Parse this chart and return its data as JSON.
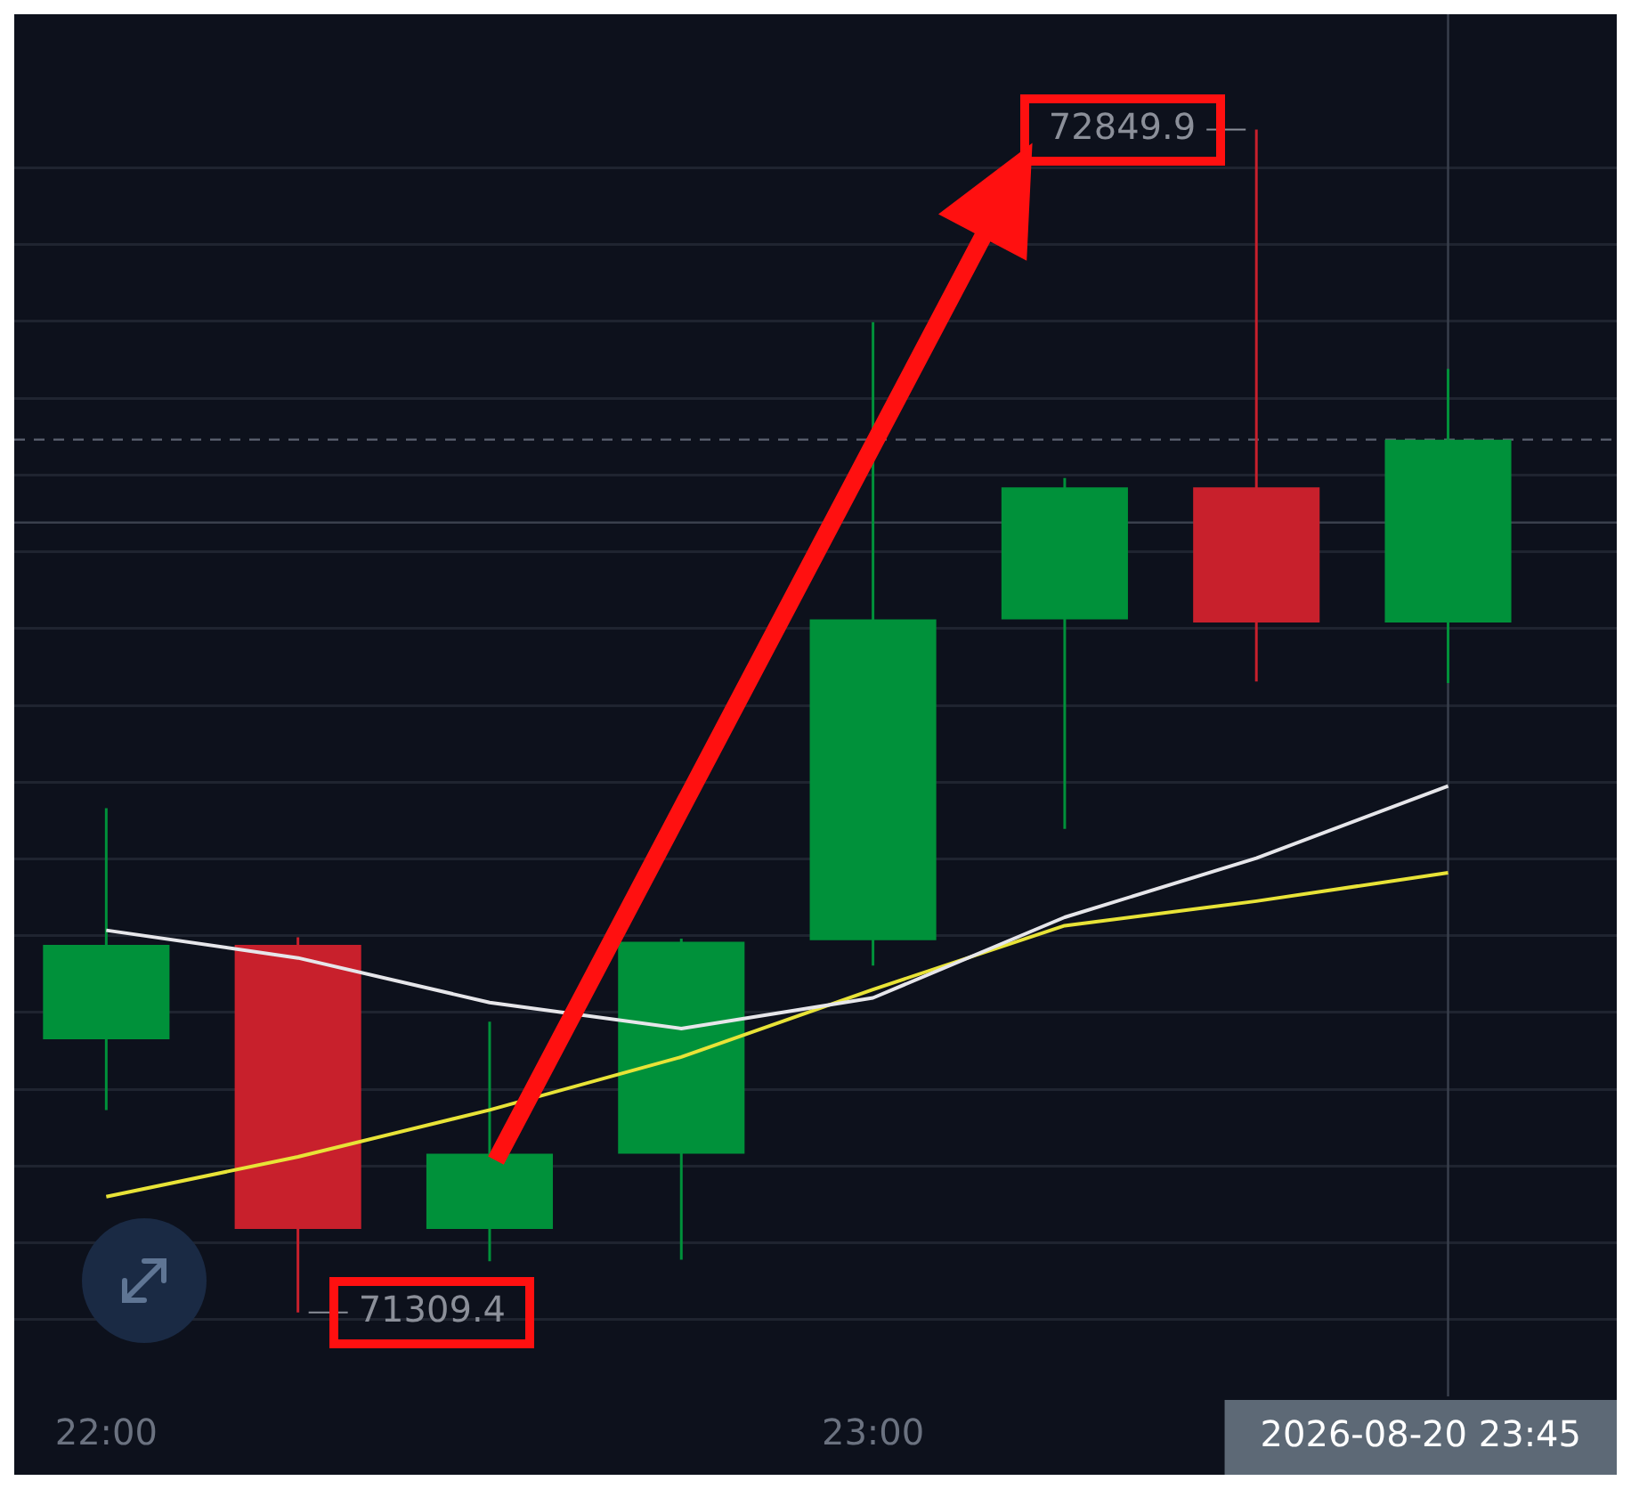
{
  "chart_data": {
    "type": "candlestick",
    "x": [
      22,
      22.25,
      22.5,
      22.75,
      23,
      23.25,
      23.5,
      23.75
    ],
    "ohlc": [
      [
        71665,
        71966,
        71573,
        71788
      ],
      [
        71788,
        71798,
        71309.4,
        71418
      ],
      [
        71418,
        71688,
        71376,
        71516
      ],
      [
        71516,
        71796,
        71378,
        71792
      ],
      [
        71794,
        72599,
        71761,
        72212
      ],
      [
        72212,
        72396,
        71939,
        72384
      ],
      [
        72384,
        72849.9,
        72131,
        72208
      ],
      [
        72208,
        72538,
        72129,
        72446
      ]
    ],
    "colors": [
      "#00913a",
      "#c8202c",
      "#00913a",
      "#00913a",
      "#00913a",
      "#00913a",
      "#c8202c",
      "#00913a"
    ],
    "series": [
      {
        "type": "line",
        "color": "#e6e6ea",
        "values": [
          71807,
          71771,
          71713,
          71679,
          71719,
          71824,
          71901,
          71995
        ]
      },
      {
        "type": "line",
        "color": "#e8e337",
        "values": [
          71460,
          71512,
          71573,
          71642,
          71730,
          71813,
          71845,
          71882
        ]
      }
    ],
    "xlim": [
      21.88,
      23.97
    ],
    "xticks": [
      {
        "value": 22,
        "label": "22:00"
      },
      {
        "value": 23,
        "label": "23:00"
      }
    ],
    "yticks": [
      {
        "value": 71300,
        "label": null
      },
      {
        "value": 71400,
        "label": null
      },
      {
        "value": 71500,
        "label": null
      },
      {
        "value": 71600,
        "label": null
      },
      {
        "value": 71700,
        "label": null
      },
      {
        "value": 71800,
        "label": null
      },
      {
        "value": 71900,
        "label": null
      },
      {
        "value": 72000,
        "label": null
      },
      {
        "value": 72100,
        "label": null
      },
      {
        "value": 72200,
        "label": null
      },
      {
        "value": 72300,
        "label": null
      },
      {
        "value": 72400,
        "label": null
      },
      {
        "value": 72500,
        "label": null
      },
      {
        "value": 72600,
        "label": null
      },
      {
        "value": 72700,
        "label": null
      },
      {
        "value": 72800,
        "label": null
      }
    ],
    "grid": "y",
    "tick_labels": "x",
    "ref_lines": [
      {
        "axis": "y",
        "value": 72446,
        "color": "#5c6270",
        "line_style": "dashed"
      },
      {
        "axis": "y",
        "value": 72338,
        "color": "#3a404d",
        "line_style": "solid"
      },
      {
        "axis": "x",
        "value": 23.75,
        "color": "#3a404d",
        "line_style": "solid"
      }
    ],
    "annotations": [
      {
        "text": "72849.9",
        "x": 23.5,
        "y": 72849.9
      },
      {
        "text": "71309.4",
        "x": 22.25,
        "y": 71309.4
      },
      "2026-08-20 23:45"
    ]
  }
}
